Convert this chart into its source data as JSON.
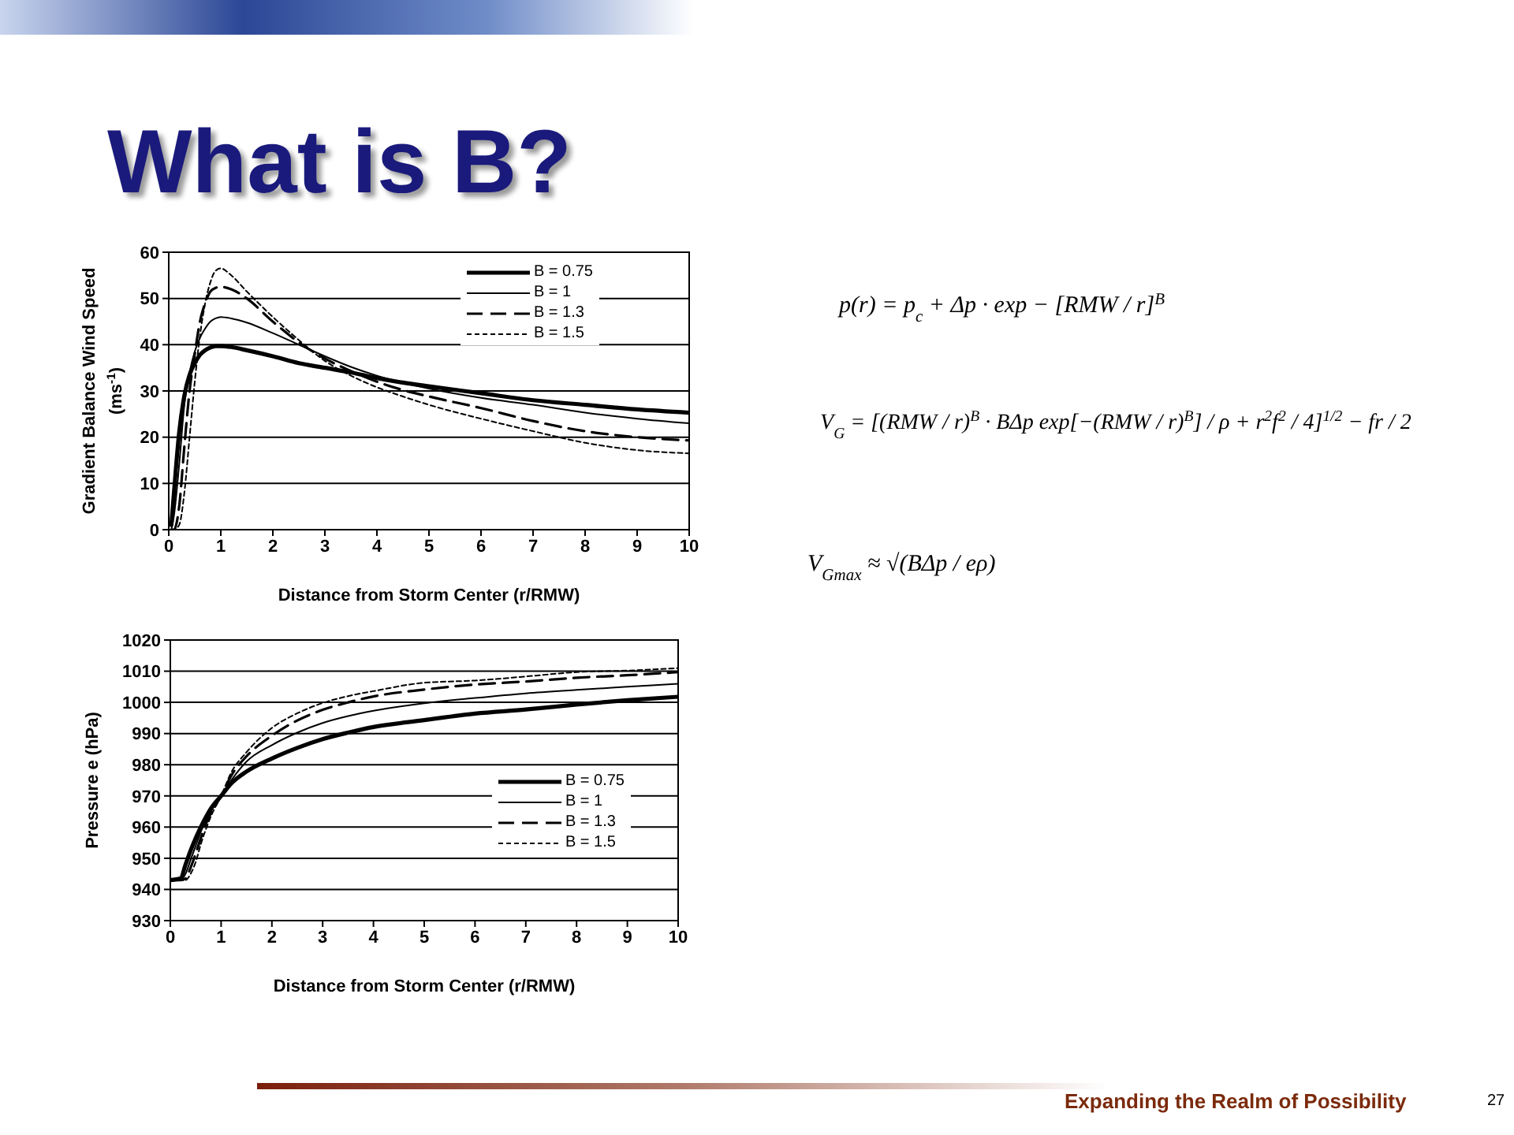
{
  "chart_data": [
    {
      "type": "line",
      "title": "What is B?",
      "xlabel": "Distance from Storm Center (r/RMW)",
      "ylabel": "Gradient Balance Wind Speed (ms$^{-1}$)",
      "xlim": [
        0,
        10
      ],
      "xticks": [
        0,
        1,
        2,
        3,
        4,
        5,
        6,
        7,
        8,
        9,
        10
      ],
      "ylim": [
        0,
        60
      ],
      "yticks": [
        0,
        10,
        20,
        30,
        40,
        50,
        60
      ],
      "grid": "y",
      "legend": "top right",
      "marker": "none",
      "x": [
        0.05,
        0.1,
        0.2,
        0.3,
        0.4,
        0.5,
        0.6,
        0.7,
        0.8,
        0.9,
        1,
        1.2,
        1.5,
        2,
        2.5,
        3,
        3.5,
        4,
        4.5,
        5,
        6,
        7,
        8,
        9,
        10
      ],
      "series": [
        {
          "name": "B = 0.75",
          "color": "#000000",
          "line_style": "solid",
          "values": [
            1,
            8,
            21,
            29,
            33.5,
            36,
            37.8,
            38.8,
            39.4,
            39.7,
            39.7,
            39.5,
            38.8,
            37.5,
            36,
            35,
            34,
            32.8,
            31.8,
            31,
            29.5,
            28,
            27,
            26,
            25.3
          ]
        },
        {
          "name": "B = 1",
          "color": "#000000",
          "line_style": "solid",
          "values": [
            0,
            3,
            14,
            27,
            34,
            38.5,
            41.5,
            43.5,
            45,
            45.7,
            46,
            45.7,
            44.8,
            42.5,
            40,
            37.5,
            35.2,
            33.3,
            31.8,
            30.5,
            28.5,
            27,
            25.3,
            24,
            23
          ]
        },
        {
          "name": "B = 1.3",
          "color": "#000000",
          "line_style": "dashed",
          "values": [
            0,
            0,
            5,
            18,
            30,
            38,
            45,
            49,
            51.5,
            52.3,
            52.5,
            52,
            50,
            45,
            40.5,
            37,
            34.3,
            32,
            30.2,
            28.8,
            26.3,
            23.5,
            21.3,
            20,
            19.3
          ]
        },
        {
          "name": "B = 1.5",
          "color": "#000000",
          "line_style": "dotted",
          "values": [
            0,
            0,
            1,
            8,
            20,
            32,
            42,
            49,
            53.5,
            56,
            56.5,
            55,
            51.5,
            46,
            41,
            36.5,
            33.3,
            30.8,
            28.8,
            27,
            24,
            21.3,
            18.8,
            17.2,
            16.5
          ]
        }
      ]
    },
    {
      "type": "line",
      "xlabel": "Distance from Storm Center (r/RMW)",
      "ylabel": "Pressure e (hPa)",
      "xlim": [
        0,
        10
      ],
      "xticks": [
        0,
        1,
        2,
        3,
        4,
        5,
        6,
        7,
        8,
        9,
        10
      ],
      "ylim": [
        930,
        1020
      ],
      "yticks": [
        930,
        940,
        950,
        960,
        970,
        980,
        990,
        1000,
        1010,
        1020
      ],
      "grid": "y",
      "legend": "right",
      "marker": "none",
      "x": [
        0,
        0.2,
        0.3,
        0.4,
        0.5,
        0.6,
        0.7,
        0.8,
        1,
        1.2,
        1.5,
        2,
        2.5,
        3,
        3.5,
        4,
        5,
        6,
        7,
        8,
        9,
        10
      ],
      "series": [
        {
          "name": "B = 0.75",
          "color": "#000000",
          "line_style": "solid",
          "values": [
            943,
            943.5,
            948,
            952.5,
            956.5,
            960,
            963.2,
            966,
            970,
            974,
            977.8,
            982,
            985.4,
            988.2,
            990.3,
            992.1,
            994.3,
            996.4,
            997.7,
            999.3,
            1000.7,
            1001.8
          ]
        },
        {
          "name": "B = 1",
          "color": "#000000",
          "line_style": "solid",
          "values": [
            943,
            943,
            945,
            949.5,
            954,
            958.5,
            962,
            965,
            970,
            975,
            981,
            986.3,
            990.3,
            993.4,
            995.6,
            997.3,
            999.7,
            1001.4,
            1002.9,
            1004,
            1005,
            1006
          ]
        },
        {
          "name": "B = 1.3",
          "color": "#000000",
          "line_style": "dashed",
          "values": [
            943,
            943,
            943.5,
            947,
            951.5,
            956.5,
            961,
            964.5,
            970,
            976.5,
            982.7,
            989.3,
            994.2,
            997.6,
            1000,
            1001.9,
            1004.1,
            1005.7,
            1006.7,
            1007.9,
            1008.7,
            1009.7
          ]
        },
        {
          "name": "B = 1.5",
          "color": "#000000",
          "line_style": "dotted",
          "values": [
            943,
            943,
            943,
            945,
            948.8,
            954.5,
            959.3,
            963.5,
            970,
            977.5,
            984,
            991.8,
            996.5,
            999.8,
            1002,
            1003.6,
            1006.3,
            1007,
            1008.3,
            1009.7,
            1010.2,
            1011
          ]
        }
      ]
    },
    {
      "type": "other",
      "annotations": [
        "p(r) = p$_{c}$ + Δp · exp − [RMW / r]$^{B}$",
        "V$_{G}$ = [(RMW / r)$^{B}$ · BΔp exp[−(RMW / r)$^{B}$] / ρ + r$^{2}$f$^{2}$ / 4]$^{1/2}$ − fr / 2",
        "V$_{Gmax}$ ≈ √(BΔp / eρ)",
        "Expanding the Realm of Possibility",
        "27"
      ]
    }
  ]
}
